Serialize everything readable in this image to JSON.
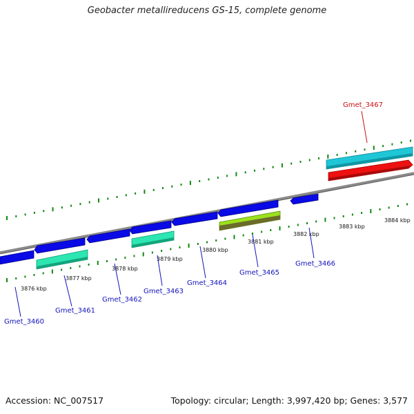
{
  "title": "Geobacter metallireducens GS-15, complete genome",
  "footer": {
    "accession": "Accession: NC_007517",
    "summary": "Topology: circular; Length: 3,997,420 bp; Genes: 3,577"
  },
  "colors": {
    "strand_blue": "#0a0ae6",
    "cyan": "#1fc6d6",
    "red": "#ee1111",
    "mint": "#2de6b2",
    "lime": "#9be21c",
    "tick_green": "#118811",
    "backbone": "#8a8a8a",
    "label_blue": "#1212bb",
    "label_red": "#cc1111"
  },
  "ruler_labels": [
    "3876 kbp",
    "3877 kbp",
    "3878 kbp",
    "3879 kbp",
    "3880 kbp",
    "3881 kbp",
    "3882 kbp",
    "3883 kbp",
    "3884 kbp"
  ],
  "genes": [
    {
      "name": "Gmet_3460",
      "strand": "reverse",
      "color": "strand_blue"
    },
    {
      "name": "Gmet_3461",
      "strand": "reverse",
      "color": "mint"
    },
    {
      "name": "Gmet_3462",
      "strand": "reverse",
      "color": "strand_blue"
    },
    {
      "name": "Gmet_3463",
      "strand": "reverse",
      "color": "mint"
    },
    {
      "name": "Gmet_3464",
      "strand": "reverse",
      "color": "strand_blue"
    },
    {
      "name": "Gmet_3465",
      "strand": "reverse",
      "color": "lime"
    },
    {
      "name": "Gmet_3466",
      "strand": "reverse",
      "color": "strand_blue"
    },
    {
      "name": "Gmet_3467",
      "strand": "forward",
      "color": "red"
    }
  ]
}
